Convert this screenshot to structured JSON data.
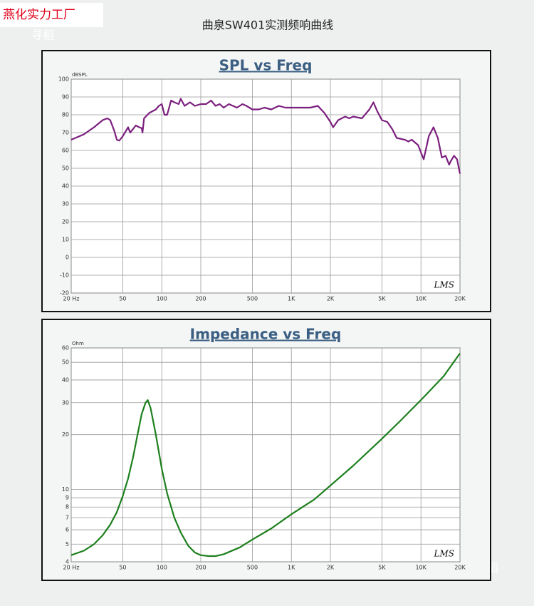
{
  "header": {
    "watermark": "燕化实力工厂",
    "title": "曲泉SW401实测频响曲线",
    "watermark2": "寻稻",
    "watermark3": "寻稻"
  },
  "chart_data": [
    {
      "type": "line",
      "title": "SPL vs Freq",
      "y_unit": "dBSPL",
      "logo": "LMS",
      "color": "#7b1f7e",
      "xlog": true,
      "ylog": false,
      "grid": true,
      "xlim": [
        20,
        20000
      ],
      "ylim": [
        -20,
        100
      ],
      "xticks": [
        {
          "value": 20,
          "label": "20 Hz"
        },
        50,
        100,
        200,
        500,
        {
          "value": 1000,
          "label": "1K"
        },
        {
          "value": 2000,
          "label": "2K"
        },
        {
          "value": 5000,
          "label": "5K"
        },
        {
          "value": 10000,
          "label": "10K"
        },
        {
          "value": 20000,
          "label": "20K"
        }
      ],
      "yticks": [
        -20,
        -10,
        0,
        10,
        20,
        30,
        40,
        50,
        60,
        70,
        80,
        90,
        100
      ],
      "x": [
        20,
        25,
        30,
        35,
        38,
        40,
        43,
        45,
        47,
        50,
        55,
        57,
        60,
        63,
        67,
        70,
        71,
        73,
        80,
        90,
        95,
        100,
        105,
        110,
        118,
        125,
        135,
        140,
        150,
        165,
        180,
        200,
        220,
        240,
        260,
        280,
        300,
        330,
        380,
        420,
        450,
        500,
        560,
        620,
        700,
        800,
        900,
        1000,
        1200,
        1400,
        1600,
        1800,
        2000,
        2100,
        2300,
        2600,
        2800,
        3000,
        3500,
        4000,
        4300,
        4600,
        5000,
        5500,
        6000,
        6500,
        7500,
        8000,
        8500,
        9500,
        10500,
        11500,
        12500,
        13500,
        14500,
        15500,
        16500,
        17000,
        18000,
        19000,
        20000
      ],
      "values": [
        66,
        69,
        73,
        77,
        78,
        77,
        71,
        66,
        65.5,
        68,
        73,
        70,
        72,
        74,
        73,
        72.5,
        70,
        78,
        81,
        83,
        85,
        86,
        80,
        80,
        88,
        87,
        86,
        89,
        85,
        87,
        85,
        86,
        86,
        88,
        85,
        86,
        84,
        86,
        84,
        86,
        85,
        83,
        83,
        84,
        83,
        85,
        84,
        84,
        84,
        84,
        85,
        81,
        76,
        73,
        77,
        79,
        78,
        79,
        78,
        83,
        87,
        82,
        77,
        76,
        72,
        67,
        66,
        65,
        66,
        63,
        55,
        68,
        73,
        67,
        56,
        57,
        52,
        54,
        57,
        55,
        47
      ]
    },
    {
      "type": "line",
      "title": "Impedance vs Freq",
      "y_unit": "Ohm",
      "logo": "LMS",
      "color": "#1d7f1d",
      "xlog": true,
      "ylog": true,
      "grid": true,
      "xlim": [
        20,
        20000
      ],
      "ylim": [
        4,
        60
      ],
      "xticks": [
        {
          "value": 20,
          "label": "20 Hz"
        },
        50,
        100,
        200,
        500,
        {
          "value": 1000,
          "label": "1K"
        },
        {
          "value": 2000,
          "label": "2K"
        },
        {
          "value": 5000,
          "label": "5K"
        },
        {
          "value": 10000,
          "label": "10K"
        },
        {
          "value": 20000,
          "label": "20K"
        }
      ],
      "yticks": [
        4,
        5,
        6,
        7,
        8,
        9,
        10,
        20,
        30,
        40,
        50,
        60
      ],
      "x": [
        20,
        25,
        30,
        35,
        40,
        45,
        50,
        55,
        60,
        65,
        70,
        75,
        78,
        82,
        90,
        100,
        110,
        125,
        140,
        160,
        180,
        200,
        230,
        260,
        300,
        400,
        500,
        700,
        1000,
        1500,
        2000,
        3000,
        5000,
        7000,
        10000,
        15000,
        20000
      ],
      "values": [
        4.35,
        4.6,
        5.0,
        5.6,
        6.4,
        7.5,
        9.2,
        11.5,
        15,
        20,
        26,
        30,
        31,
        28,
        20,
        13,
        9.5,
        7,
        5.8,
        4.9,
        4.5,
        4.35,
        4.3,
        4.3,
        4.4,
        4.8,
        5.3,
        6.1,
        7.3,
        8.8,
        10.5,
        13.5,
        19,
        24,
        31,
        42,
        56
      ]
    }
  ]
}
